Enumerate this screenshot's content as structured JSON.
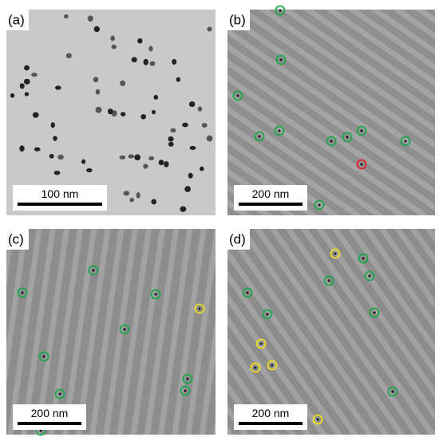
{
  "panels": [
    {
      "label": "(a)",
      "scale_bar": "100 nm"
    },
    {
      "label": "(b)",
      "scale_bar": "200 nm"
    },
    {
      "label": "(c)",
      "scale_bar": "200 nm"
    },
    {
      "label": "(d)",
      "scale_bar": "200 nm"
    }
  ]
}
